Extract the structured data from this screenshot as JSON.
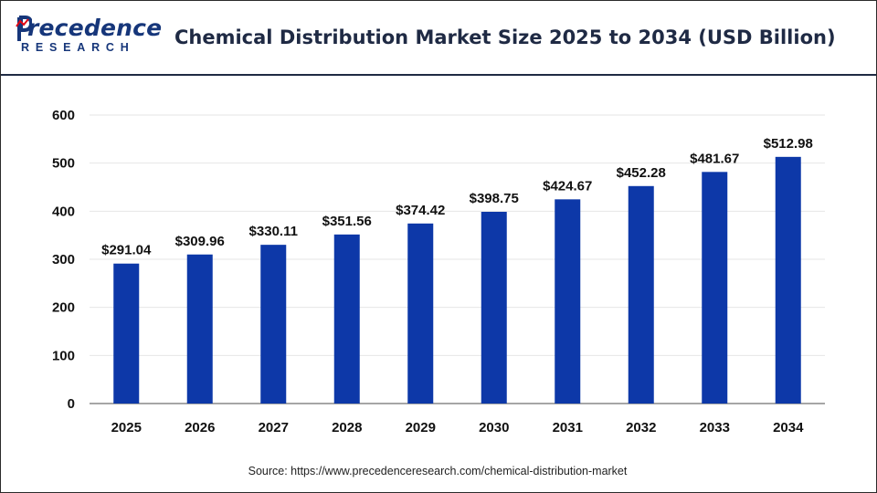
{
  "logo": {
    "name": "recedence",
    "initial": "P",
    "subtitle": "RESEARCH"
  },
  "colors": {
    "bar": "#0d38a8",
    "grid": "#e6e6e6",
    "axis": "#888888",
    "text": "#111111",
    "brand": "#16367a",
    "accent": "#e30613"
  },
  "chart_data": {
    "type": "bar",
    "title": "Chemical Distribution Market Size 2025 to 2034 (USD Billion)",
    "xlabel": "",
    "ylabel": "",
    "categories": [
      "2025",
      "2026",
      "2027",
      "2028",
      "2029",
      "2030",
      "2031",
      "2032",
      "2033",
      "2034"
    ],
    "values": [
      291.04,
      309.96,
      330.11,
      351.56,
      374.42,
      398.75,
      424.67,
      452.28,
      481.67,
      512.98
    ],
    "data_labels": [
      "$291.04",
      "$309.96",
      "$330.11",
      "$351.56",
      "$374.42",
      "$398.75",
      "$424.67",
      "$452.28",
      "$481.67",
      "$512.98"
    ],
    "yticks": [
      0,
      100,
      200,
      300,
      400,
      500,
      600
    ],
    "ylim": [
      0,
      600
    ],
    "grid": true,
    "legend": "none"
  },
  "source": "Source: https://www.precedenceresearch.com/chemical-distribution-market"
}
